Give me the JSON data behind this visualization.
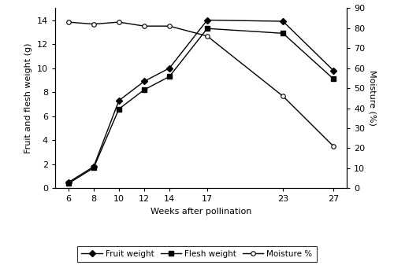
{
  "weeks": [
    6,
    8,
    10,
    12,
    14,
    17,
    23,
    27
  ],
  "fruit_weight": [
    0.5,
    1.8,
    7.3,
    8.9,
    10.0,
    14.0,
    13.9,
    9.8
  ],
  "flesh_weight": [
    0.4,
    1.7,
    6.6,
    8.2,
    9.3,
    13.3,
    12.9,
    9.1
  ],
  "moisture_pct": [
    83,
    82,
    83,
    81,
    81,
    76,
    46,
    21
  ],
  "xlabel": "Weeks after pollination",
  "ylabel_left": "Fruit and flesh weight (g)",
  "ylabel_right": "Moisture (%)",
  "left_ylim": [
    0,
    15
  ],
  "right_ylim": [
    0,
    90
  ],
  "left_yticks": [
    0,
    2,
    4,
    6,
    8,
    10,
    12,
    14
  ],
  "right_yticks": [
    0,
    10,
    20,
    30,
    40,
    50,
    60,
    70,
    80,
    90
  ],
  "xticks": [
    6,
    8,
    10,
    12,
    14,
    17,
    23,
    27
  ],
  "legend_labels": [
    "Fruit weight",
    "Flesh weight",
    "Moisture %"
  ],
  "line_color": "black",
  "fruit_marker": "D",
  "flesh_marker": "s",
  "moisture_marker": "o",
  "xlabel_fontsize": 8,
  "ylabel_fontsize": 8,
  "tick_fontsize": 8,
  "legend_fontsize": 7.5,
  "linewidth": 1.0,
  "markersize": 4
}
